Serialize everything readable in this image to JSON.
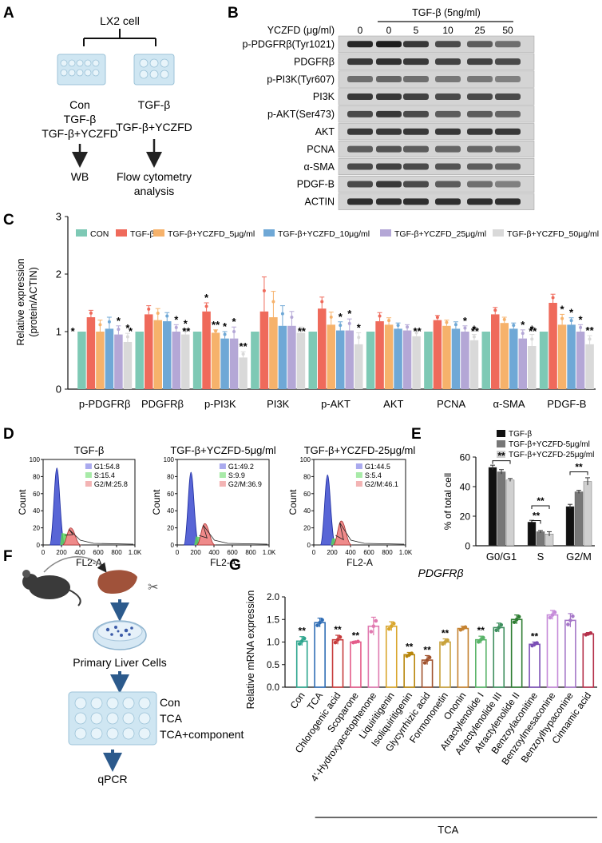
{
  "panels": {
    "A": {
      "letter": "A",
      "cell": "LX2 cell",
      "left_groups": [
        "Con",
        "TGF-β",
        "TGF-β+YCZFD"
      ],
      "right_groups": [
        "TGF-β",
        "TGF-β+YCZFD"
      ],
      "left_assay": "WB",
      "right_assay_line1": "Flow cytometry",
      "right_assay_line2": "analysis"
    },
    "B": {
      "letter": "B",
      "dose_label": "YCZFD (μg/ml)",
      "tgf_label": "TGF-β (5ng/ml)",
      "doses": [
        "0",
        "0",
        "5",
        "10",
        "25",
        "50"
      ],
      "bands": [
        "p-PDGFRβ(Tyr1021)",
        "PDGFRβ",
        "p-PI3K(Tyr607)",
        "PI3K",
        "p-AKT(Ser473)",
        "AKT",
        "PCNA",
        "α-SMA",
        "PDGF-B",
        "ACTIN"
      ]
    },
    "C": {
      "letter": "C"
    },
    "D": {
      "letter": "D",
      "plots": [
        {
          "title": "TGF-β",
          "g1": "G1:54.8",
          "s": "S:15.4",
          "g2m": "G2/M:25.8"
        },
        {
          "title": "TGF-β+YCZFD-5μg/ml",
          "g1": "G1:49.2",
          "s": "S:9.9",
          "g2m": "G2/M:36.9"
        },
        {
          "title": "TGF-β+YCZFD-25μg/ml",
          "g1": "G1:44.5",
          "s": "S:5.4",
          "g2m": "G2/M:46.1"
        }
      ],
      "ylabel": "Count",
      "xlabel": "FL2-A",
      "yticks": [
        "0",
        "20",
        "40",
        "60",
        "80",
        "100"
      ],
      "xticks": [
        "0",
        "200",
        "400",
        "600",
        "800",
        "1.0K"
      ]
    },
    "E": {
      "letter": "E"
    },
    "F": {
      "letter": "F",
      "primary": "Primary Liver Cells",
      "groups": [
        "Con",
        "TCA",
        "TCA+component"
      ],
      "assay": "qPCR"
    },
    "G": {
      "letter": "G"
    }
  },
  "chart_data": [
    {
      "id": "C",
      "type": "bar",
      "ylabel": "Relative expression (protein/ACTIN)",
      "ylabel_line1": "Relative expression",
      "ylabel_line2": "(protein/ACTIN)",
      "ylim": [
        0,
        3
      ],
      "yticks": [
        "0",
        "1",
        "2",
        "3"
      ],
      "legend_position": "top",
      "categories": [
        "p-PDGFRβ",
        "PDGFRβ",
        "p-PI3K",
        "PI3K",
        "p-AKT",
        "AKT",
        "PCNA",
        "α-SMA",
        "PDGF-B"
      ],
      "series": [
        {
          "name": "CON",
          "color": "#7ec9b5",
          "values": [
            1,
            1,
            1,
            1,
            1,
            1,
            1,
            1,
            1
          ],
          "errors": [
            0,
            0,
            0,
            0,
            0,
            0,
            0,
            0,
            0
          ]
        },
        {
          "name": "TGF-β",
          "color": "#ef6a5b",
          "values": [
            1.25,
            1.3,
            1.35,
            1.35,
            1.4,
            1.18,
            1.2,
            1.3,
            1.5
          ],
          "errors": [
            0.12,
            0.15,
            0.15,
            0.6,
            0.2,
            0.15,
            0.08,
            0.12,
            0.15
          ]
        },
        {
          "name": "TGF-β+YCZFD_5μg/ml",
          "color": "#f6b26b",
          "values": [
            1.0,
            1.2,
            0.98,
            1.25,
            1.12,
            1.12,
            1.1,
            1.15,
            1.12
          ],
          "errors": [
            0.2,
            0.2,
            0.05,
            0.45,
            0.22,
            0.12,
            0.1,
            0.1,
            0.18
          ]
        },
        {
          "name": "TGF-β+YCZFD_10μg/ml",
          "color": "#6fa8d6",
          "values": [
            1.05,
            1.18,
            0.88,
            1.1,
            1.02,
            1.05,
            1.05,
            1.05,
            1.12
          ],
          "errors": [
            0.2,
            0.15,
            0.12,
            0.35,
            0.15,
            0.1,
            0.12,
            0.1,
            0.12
          ]
        },
        {
          "name": "TGF-β+YCZFD_25μg/ml",
          "color": "#b4a7d6",
          "values": [
            0.95,
            1.0,
            0.88,
            1.1,
            1.02,
            1.02,
            1.0,
            0.88,
            1.0
          ],
          "errors": [
            0.15,
            0.12,
            0.2,
            0.25,
            0.2,
            0.1,
            0.1,
            0.15,
            0.12
          ]
        },
        {
          "name": "TGF-β+YCZFD_50μg/ml",
          "color": "#d9d9d9",
          "values": [
            0.82,
            0.95,
            0.55,
            0.98,
            0.78,
            0.92,
            0.85,
            0.75,
            0.78
          ],
          "errors": [
            0.15,
            0.1,
            0.1,
            0.1,
            0.2,
            0.1,
            0.1,
            0.2,
            0.15
          ]
        }
      ],
      "annotations": [
        {
          "category": 0,
          "series": 0,
          "text": "*"
        },
        {
          "category": 0,
          "series": 4,
          "text": "*"
        },
        {
          "category": 0,
          "series": 5,
          "text": "*"
        },
        {
          "category": 1,
          "series": 0,
          "text": "*"
        },
        {
          "category": 1,
          "series": 4,
          "text": "*"
        },
        {
          "category": 1,
          "series": 5,
          "text": "*"
        },
        {
          "category": 2,
          "series": 0,
          "text": "**"
        },
        {
          "category": 2,
          "series": 1,
          "text": "*"
        },
        {
          "category": 2,
          "series": 2,
          "text": "**"
        },
        {
          "category": 2,
          "series": 3,
          "text": "*"
        },
        {
          "category": 2,
          "series": 4,
          "text": "*"
        },
        {
          "category": 2,
          "series": 5,
          "text": "**"
        },
        {
          "category": 4,
          "series": 0,
          "text": "**"
        },
        {
          "category": 4,
          "series": 3,
          "text": "*"
        },
        {
          "category": 4,
          "series": 4,
          "text": "*"
        },
        {
          "category": 4,
          "series": 5,
          "text": "*"
        },
        {
          "category": 6,
          "series": 0,
          "text": "**"
        },
        {
          "category": 6,
          "series": 4,
          "text": "*"
        },
        {
          "category": 6,
          "series": 5,
          "text": "*"
        },
        {
          "category": 7,
          "series": 0,
          "text": "**"
        },
        {
          "category": 7,
          "series": 4,
          "text": "*"
        },
        {
          "category": 7,
          "series": 5,
          "text": "*"
        },
        {
          "category": 8,
          "series": 0,
          "text": "**"
        },
        {
          "category": 8,
          "series": 2,
          "text": "*"
        },
        {
          "category": 8,
          "series": 3,
          "text": "*"
        },
        {
          "category": 8,
          "series": 4,
          "text": "*"
        },
        {
          "category": 8,
          "series": 5,
          "text": "**"
        }
      ]
    },
    {
      "id": "E",
      "type": "bar",
      "ylabel": "% of total cell",
      "ylim": [
        0,
        60
      ],
      "yticks": [
        "0",
        "20",
        "40",
        "60"
      ],
      "legend_position": "top",
      "categories": [
        "G0/G1",
        "S",
        "G2/M"
      ],
      "series": [
        {
          "name": "TGF-β",
          "color": "#111111",
          "values": [
            53,
            16,
            26.5
          ],
          "errors": [
            1.5,
            1.2,
            1.5
          ]
        },
        {
          "name": "TGF-β+YCZFD-5μg/ml",
          "color": "#777777",
          "values": [
            50,
            9.5,
            36.5
          ],
          "errors": [
            1.5,
            0.8,
            1
          ]
        },
        {
          "name": "TGF-β+YCZFD-25μg/ml",
          "color": "#d0d0d0",
          "values": [
            44.5,
            8,
            43.5
          ],
          "errors": [
            1,
            1.5,
            2.5
          ]
        }
      ],
      "brackets": [
        {
          "category": 0,
          "from": 0,
          "to": 2,
          "text": "**"
        },
        {
          "category": 1,
          "from": 0,
          "to": 1,
          "text": "**"
        },
        {
          "category": 1,
          "from": 0,
          "to": 2,
          "text": "**"
        },
        {
          "category": 2,
          "from": 0,
          "to": 2,
          "text": "**"
        }
      ]
    },
    {
      "id": "G",
      "type": "bar",
      "title": "PDGFRβ",
      "ylabel": "Relative mRNA expression",
      "ylim": [
        0,
        2.0
      ],
      "yticks": [
        "0.0",
        "0.5",
        "1.0",
        "1.5",
        "2.0"
      ],
      "group_label": "TCA",
      "categories": [
        "Con",
        "TCA",
        "Chlorogenic acid",
        "Scoparone",
        "4'-Hydroxyacetophenone",
        "Liquiritigenin",
        "Isoliquiritigenin",
        "Glycyrrhizic acid",
        "Formononetin",
        "Ononin",
        "Atractylenolide I",
        "Atractylenolide III",
        "Atractylenolide II",
        "Benzoylaconitine",
        "Benzoylmesaconine",
        "Benzoylhypaconine",
        "Cinnamic acid"
      ],
      "values": [
        1.02,
        1.43,
        1.05,
        1.0,
        1.35,
        1.35,
        0.72,
        0.6,
        1.0,
        1.3,
        1.05,
        1.32,
        1.5,
        0.95,
        1.6,
        1.48,
        1.18
      ],
      "errors": [
        0.1,
        0.1,
        0.1,
        0.02,
        0.2,
        0.1,
        0.05,
        0.1,
        0.07,
        0.05,
        0.08,
        0.1,
        0.1,
        0.05,
        0.1,
        0.15,
        0.03
      ],
      "colors": [
        "#2ca58d",
        "#2f6db5",
        "#c63b3b",
        "#e45c8a",
        "#e07ab0",
        "#d9a62c",
        "#b8860b",
        "#a0522d",
        "#c8a23c",
        "#c58230",
        "#58b368",
        "#3f8f5f",
        "#2e7d32",
        "#7b4fb5",
        "#c58ad9",
        "#a678c8",
        "#b5304a"
      ],
      "significance": [
        "**",
        "",
        "**",
        "**",
        "",
        "",
        "**",
        "**",
        "**",
        "",
        "**",
        "",
        "",
        "**",
        "",
        "",
        ""
      ]
    }
  ]
}
